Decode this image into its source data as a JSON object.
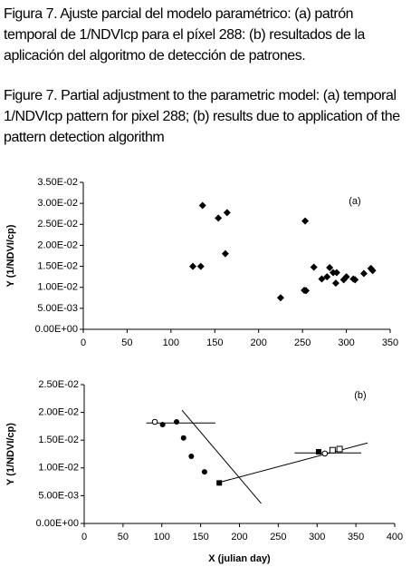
{
  "captions": [
    "Figura 7. Ajuste parcial del modelo paramétrico: (a) patrón temporal de 1/NDVIcp para el píxel 288: (b) resultados de la aplicación del algoritmo de detección de patrones.",
    "Figure 7. Partial adjustment to the parametric model: (a) temporal 1/NDVIcp pattern for pixel 288; (b) results due to application of the pattern detection algorithm"
  ],
  "chart_data": [
    {
      "type": "scatter",
      "annotation": "(a)",
      "y_label": "Y (1/NDVI/cp)",
      "xlim": [
        0,
        350
      ],
      "xticks": [
        0,
        50,
        100,
        150,
        200,
        250,
        300,
        350
      ],
      "ylim": [
        0,
        0.035
      ],
      "yticks": [
        {
          "value": 0,
          "label": "0.00E+00"
        },
        {
          "value": 0.005,
          "label": "5.00E-03"
        },
        {
          "value": 0.01,
          "label": "1.00E-02"
        },
        {
          "value": 0.015,
          "label": "1.50E-02"
        },
        {
          "value": 0.02,
          "label": "2.00E-02"
        },
        {
          "value": 0.025,
          "label": "2.50E-02"
        },
        {
          "value": 0.03,
          "label": "3.00E-02"
        },
        {
          "value": 0.035,
          "label": "3.50E-02"
        }
      ],
      "series": [
        {
          "marker": "diamond",
          "color": "#000000",
          "x": [
            125,
            134,
            136,
            154,
            162,
            164,
            225,
            252,
            253,
            254,
            263,
            272,
            278,
            281,
            285,
            288,
            289,
            297,
            300,
            308,
            310,
            320,
            328,
            330
          ],
          "values": [
            0.015,
            0.015,
            0.0295,
            0.0265,
            0.018,
            0.0278,
            0.0075,
            0.0093,
            0.0258,
            0.0092,
            0.0148,
            0.012,
            0.0125,
            0.0147,
            0.0135,
            0.011,
            0.0135,
            0.0118,
            0.0125,
            0.012,
            0.0118,
            0.0133,
            0.0145,
            0.014
          ]
        }
      ]
    },
    {
      "type": "scatter",
      "annotation": "(b)",
      "y_label": "Y (1/NDVI/cp)",
      "x_label": "X (julian day)",
      "xlim": [
        0,
        400
      ],
      "xticks": [
        0,
        50,
        100,
        150,
        200,
        250,
        300,
        350,
        400
      ],
      "ylim": [
        0,
        0.025
      ],
      "yticks": [
        {
          "value": 0,
          "label": "0.00E+00"
        },
        {
          "value": 0.005,
          "label": "5.00E-03"
        },
        {
          "value": 0.01,
          "label": "1.00E-02"
        },
        {
          "value": 0.015,
          "label": "1.50E-02"
        },
        {
          "value": 0.02,
          "label": "2.00E-02"
        },
        {
          "value": 0.025,
          "label": "2.50E-02"
        }
      ],
      "series": [
        {
          "line": true,
          "color": "#000000",
          "x": [
            80,
            169
          ],
          "values": [
            0.0181,
            0.0181
          ]
        },
        {
          "line": true,
          "color": "#000000",
          "x": [
            126,
            228
          ],
          "values": [
            0.0204,
            0.0036
          ]
        },
        {
          "line": true,
          "color": "#000000",
          "x": [
            174,
            365
          ],
          "values": [
            0.0074,
            0.0145
          ]
        },
        {
          "line": true,
          "color": "#000000",
          "x": [
            271,
            357
          ],
          "values": [
            0.0127,
            0.0127
          ]
        },
        {
          "marker": "circle-open",
          "color": "#000000",
          "x": [
            91,
            310
          ],
          "values": [
            0.0183,
            0.0126
          ]
        },
        {
          "marker": "circle",
          "color": "#000000",
          "x": [
            101,
            119,
            128,
            138,
            155
          ],
          "values": [
            0.0178,
            0.0183,
            0.0154,
            0.0121,
            0.0093
          ]
        },
        {
          "marker": "square",
          "color": "#000000",
          "x": [
            174,
            302
          ],
          "values": [
            0.0073,
            0.0129
          ]
        },
        {
          "marker": "square-open",
          "color": "#000000",
          "x": [
            320,
            329
          ],
          "values": [
            0.0132,
            0.0134
          ]
        }
      ]
    }
  ]
}
